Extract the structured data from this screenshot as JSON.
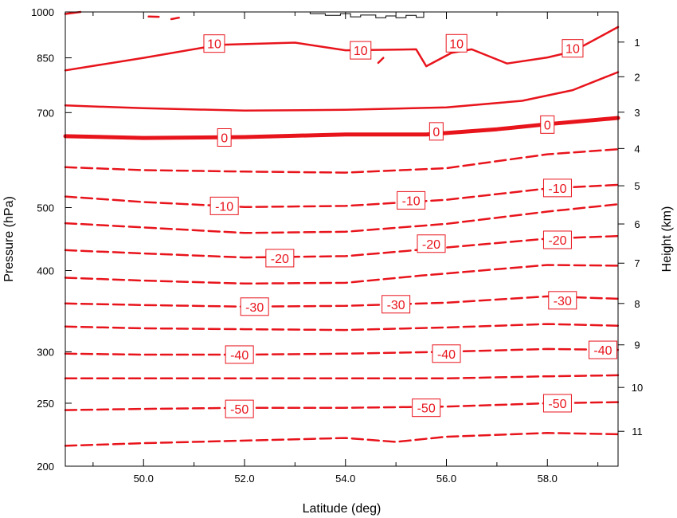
{
  "chart_data": {
    "type": "contour",
    "xlabel": "Latitude (deg)",
    "ylabel_left": "Pressure (hPa)",
    "ylabel_right": "Height (km)",
    "x_range": [
      48.45,
      59.4
    ],
    "x_ticks": [
      50.0,
      52.0,
      54.0,
      56.0,
      58.0
    ],
    "x_tick_labels": [
      "50.0",
      "52.0",
      "54.0",
      "56.0",
      "58.0"
    ],
    "pressure_range": [
      1000,
      200
    ],
    "pressure_scale": "log",
    "pressure_ticks": [
      1000,
      850,
      700,
      500,
      400,
      300,
      250,
      200
    ],
    "pressure_tick_labels": [
      "1000",
      "850",
      "700",
      "500",
      "400",
      "300",
      "250",
      "200"
    ],
    "height_ticks": [
      1,
      2,
      3,
      4,
      5,
      6,
      7,
      8,
      9,
      10,
      11
    ],
    "height_tick_labels": [
      "1",
      "2",
      "3",
      "4",
      "5",
      "6",
      "7",
      "8",
      "9",
      "10",
      "11"
    ],
    "contour_interval": 5,
    "line_color": "#e8141c",
    "negative_style": "dashed",
    "zero_style": "thick",
    "contours": [
      {
        "level": -55,
        "points": [
          [
            48.45,
            215
          ],
          [
            50,
            217
          ],
          [
            52,
            219
          ],
          [
            54,
            221
          ],
          [
            55,
            218
          ],
          [
            56,
            222
          ],
          [
            58,
            225
          ],
          [
            59.4,
            224
          ]
        ]
      },
      {
        "level": -50,
        "points": [
          [
            48.45,
            244
          ],
          [
            50,
            245
          ],
          [
            52,
            246
          ],
          [
            54,
            246
          ],
          [
            56,
            247
          ],
          [
            58,
            250
          ],
          [
            59.4,
            251
          ]
        ]
      },
      {
        "level": -45,
        "points": [
          [
            48.45,
            273
          ],
          [
            50,
            273
          ],
          [
            52,
            273
          ],
          [
            54,
            273
          ],
          [
            56,
            273
          ],
          [
            58,
            275
          ],
          [
            59.4,
            276
          ]
        ]
      },
      {
        "level": -40,
        "points": [
          [
            48.45,
            298
          ],
          [
            50,
            297
          ],
          [
            52,
            297
          ],
          [
            54,
            298
          ],
          [
            56,
            300
          ],
          [
            58,
            303
          ],
          [
            59.4,
            302
          ]
        ]
      },
      {
        "level": -35,
        "points": [
          [
            48.45,
            328
          ],
          [
            50,
            326
          ],
          [
            52,
            325
          ],
          [
            54,
            324
          ],
          [
            56,
            327
          ],
          [
            58,
            331
          ],
          [
            59.4,
            329
          ]
        ]
      },
      {
        "level": -30,
        "points": [
          [
            48.45,
            356
          ],
          [
            50,
            354
          ],
          [
            52,
            352
          ],
          [
            54,
            353
          ],
          [
            56,
            357
          ],
          [
            58,
            365
          ],
          [
            59.4,
            362
          ]
        ]
      },
      {
        "level": -25,
        "points": [
          [
            48.45,
            390
          ],
          [
            50,
            386
          ],
          [
            52,
            382
          ],
          [
            54,
            383
          ],
          [
            55.5,
            393
          ],
          [
            58,
            408
          ],
          [
            59.4,
            407
          ]
        ]
      },
      {
        "level": -20,
        "points": [
          [
            48.45,
            430
          ],
          [
            50,
            425
          ],
          [
            52,
            419
          ],
          [
            54,
            421
          ],
          [
            56,
            434
          ],
          [
            58,
            448
          ],
          [
            59.4,
            452
          ]
        ]
      },
      {
        "level": -15,
        "points": [
          [
            48.45,
            473
          ],
          [
            50,
            466
          ],
          [
            52,
            457
          ],
          [
            54,
            459
          ],
          [
            56,
            472
          ],
          [
            58,
            493
          ],
          [
            59.4,
            506
          ]
        ]
      },
      {
        "level": -10,
        "points": [
          [
            48.45,
            520
          ],
          [
            50,
            510
          ],
          [
            52,
            501
          ],
          [
            54,
            503
          ],
          [
            56,
            514
          ],
          [
            58,
            535
          ],
          [
            59.4,
            542
          ]
        ]
      },
      {
        "level": -5,
        "points": [
          [
            48.45,
            577
          ],
          [
            50,
            571
          ],
          [
            52,
            568
          ],
          [
            54,
            566
          ],
          [
            56,
            575
          ],
          [
            58,
            604
          ],
          [
            59.4,
            615
          ]
        ]
      },
      {
        "level": 0,
        "points": [
          [
            48.45,
            644
          ],
          [
            50,
            640
          ],
          [
            52,
            642
          ],
          [
            54,
            648
          ],
          [
            55.6,
            648
          ],
          [
            57,
            660
          ],
          [
            58,
            672
          ],
          [
            59.4,
            687
          ]
        ]
      },
      {
        "level": 5,
        "points": [
          [
            48.45,
            718
          ],
          [
            50,
            711
          ],
          [
            52,
            705
          ],
          [
            54,
            707
          ],
          [
            56,
            713
          ],
          [
            57.5,
            730
          ],
          [
            58.5,
            758
          ],
          [
            59.4,
            808
          ]
        ]
      },
      {
        "level": 10,
        "points": [
          [
            48.45,
            813
          ],
          [
            50,
            850
          ],
          [
            51.5,
            890
          ],
          [
            53,
            897
          ],
          [
            54,
            873
          ],
          [
            55.4,
            876
          ],
          [
            55.6,
            825
          ],
          [
            56.1,
            865
          ],
          [
            56.5,
            876
          ],
          [
            57.2,
            833
          ],
          [
            58,
            851
          ],
          [
            58.5,
            869
          ],
          [
            59.4,
            948
          ]
        ]
      },
      {
        "level": 10,
        "points": [
          [
            50.1,
            984
          ],
          [
            50.3,
            983
          ]
        ]
      },
      {
        "level": 10,
        "points": [
          [
            50.55,
            975
          ],
          [
            50.7,
            980
          ]
        ]
      },
      {
        "level": 10,
        "points": [
          [
            48.45,
            993
          ],
          [
            48.75,
            1000
          ]
        ]
      },
      {
        "level": 10,
        "points": [
          [
            54.65,
            835
          ],
          [
            54.75,
            850
          ]
        ]
      }
    ],
    "contour_labels": [
      {
        "text": "-50",
        "lat": 51.9,
        "pressure": 245
      },
      {
        "text": "-50",
        "lat": 55.6,
        "pressure": 246
      },
      {
        "text": "-50",
        "lat": 58.2,
        "pressure": 250
      },
      {
        "text": "-40",
        "lat": 51.9,
        "pressure": 297
      },
      {
        "text": "-40",
        "lat": 56.0,
        "pressure": 298
      },
      {
        "text": "-40",
        "lat": 59.1,
        "pressure": 302
      },
      {
        "text": "-30",
        "lat": 52.2,
        "pressure": 352
      },
      {
        "text": "-30",
        "lat": 55.0,
        "pressure": 355
      },
      {
        "text": "-30",
        "lat": 58.3,
        "pressure": 360
      },
      {
        "text": "-20",
        "lat": 52.7,
        "pressure": 418
      },
      {
        "text": "-20",
        "lat": 55.7,
        "pressure": 440
      },
      {
        "text": "-20",
        "lat": 58.2,
        "pressure": 446
      },
      {
        "text": "-10",
        "lat": 51.6,
        "pressure": 503
      },
      {
        "text": "-10",
        "lat": 55.3,
        "pressure": 513
      },
      {
        "text": "-10",
        "lat": 58.2,
        "pressure": 536
      },
      {
        "text": "0",
        "lat": 51.6,
        "pressure": 641
      },
      {
        "text": "0",
        "lat": 55.8,
        "pressure": 655
      },
      {
        "text": "0",
        "lat": 58.0,
        "pressure": 671
      },
      {
        "text": "10",
        "lat": 51.4,
        "pressure": 894
      },
      {
        "text": "10",
        "lat": 54.3,
        "pressure": 873
      },
      {
        "text": "10",
        "lat": 56.2,
        "pressure": 895
      },
      {
        "text": "10",
        "lat": 58.5,
        "pressure": 879
      }
    ],
    "terrain": {
      "color": "#000000",
      "points": [
        [
          53.3,
          1000
        ],
        [
          53.3,
          994
        ],
        [
          53.6,
          994
        ],
        [
          53.6,
          988
        ],
        [
          53.9,
          988
        ],
        [
          53.9,
          994
        ],
        [
          54.1,
          994
        ],
        [
          54.1,
          983
        ],
        [
          54.3,
          983
        ],
        [
          54.3,
          989
        ],
        [
          54.6,
          989
        ],
        [
          54.6,
          980
        ],
        [
          54.8,
          980
        ],
        [
          54.8,
          986
        ],
        [
          55.0,
          986
        ],
        [
          55.0,
          980
        ],
        [
          55.2,
          980
        ],
        [
          55.2,
          988
        ],
        [
          55.4,
          988
        ],
        [
          55.4,
          981
        ],
        [
          55.55,
          981
        ],
        [
          55.55,
          1000
        ]
      ]
    }
  }
}
